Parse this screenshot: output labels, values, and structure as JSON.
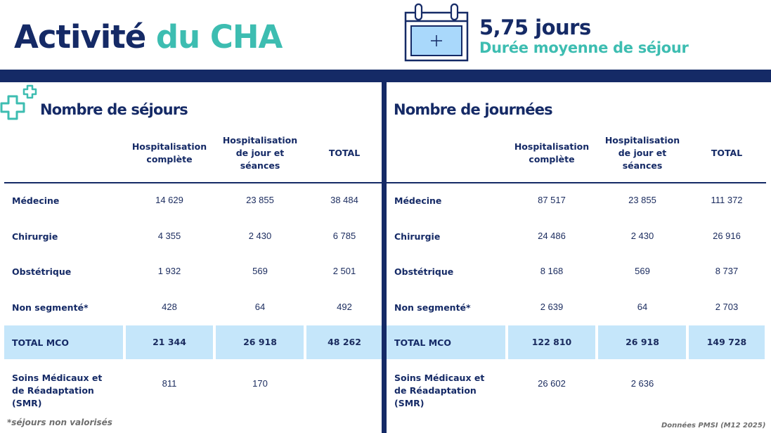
{
  "header": {
    "title_part1": "Activité",
    "title_part2": "du CHA",
    "stat_value": "5,75 jours",
    "stat_label": "Durée moyenne de séjour"
  },
  "columns": [
    "Hospitalisation complète",
    "Hospitalisation de jour et séances",
    "TOTAL"
  ],
  "sejours": {
    "title": "Nombre de séjours",
    "rows": [
      {
        "label": "Médecine",
        "values": [
          "14 629",
          "23 855",
          "38 484"
        ]
      },
      {
        "label": "Chirurgie",
        "values": [
          "4 355",
          "2 430",
          "6 785"
        ]
      },
      {
        "label": "Obstétrique",
        "values": [
          "1 932",
          "569",
          "2 501"
        ]
      },
      {
        "label": "Non segmenté*",
        "values": [
          "428",
          "64",
          "492"
        ]
      },
      {
        "label": "TOTAL MCO",
        "values": [
          "21 344",
          "26 918",
          "48 262"
        ]
      },
      {
        "label": "Soins Médicaux et de Réadaptation (SMR)",
        "values": [
          "811",
          "170",
          ""
        ]
      }
    ]
  },
  "journees": {
    "title": "Nombre de journées",
    "rows": [
      {
        "label": "Médecine",
        "values": [
          "87 517",
          "23 855",
          "111 372"
        ]
      },
      {
        "label": "Chirurgie",
        "values": [
          "24 486",
          "2 430",
          "26 916"
        ]
      },
      {
        "label": "Obstétrique",
        "values": [
          "8 168",
          "569",
          "8 737"
        ]
      },
      {
        "label": "Non segmenté*",
        "values": [
          "2 639",
          "64",
          "2 703"
        ]
      },
      {
        "label": "TOTAL MCO",
        "values": [
          "122 810",
          "26 918",
          "149 728"
        ]
      },
      {
        "label": "Soins Médicaux et de Réadaptation (SMR)",
        "values": [
          "26 602",
          "2 636",
          ""
        ]
      }
    ]
  },
  "footnotes": {
    "left": "*séjours non valorisés",
    "right": "Données PMSI (M12 2025)"
  },
  "icons": {
    "calendar": "calendar-icon",
    "medical": "medical-cross-icon"
  },
  "colors": {
    "navy": "#152a66",
    "teal": "#3dbdb1",
    "highlight": "#c5e6fa",
    "calendar_fill": "#a9d8fb"
  }
}
